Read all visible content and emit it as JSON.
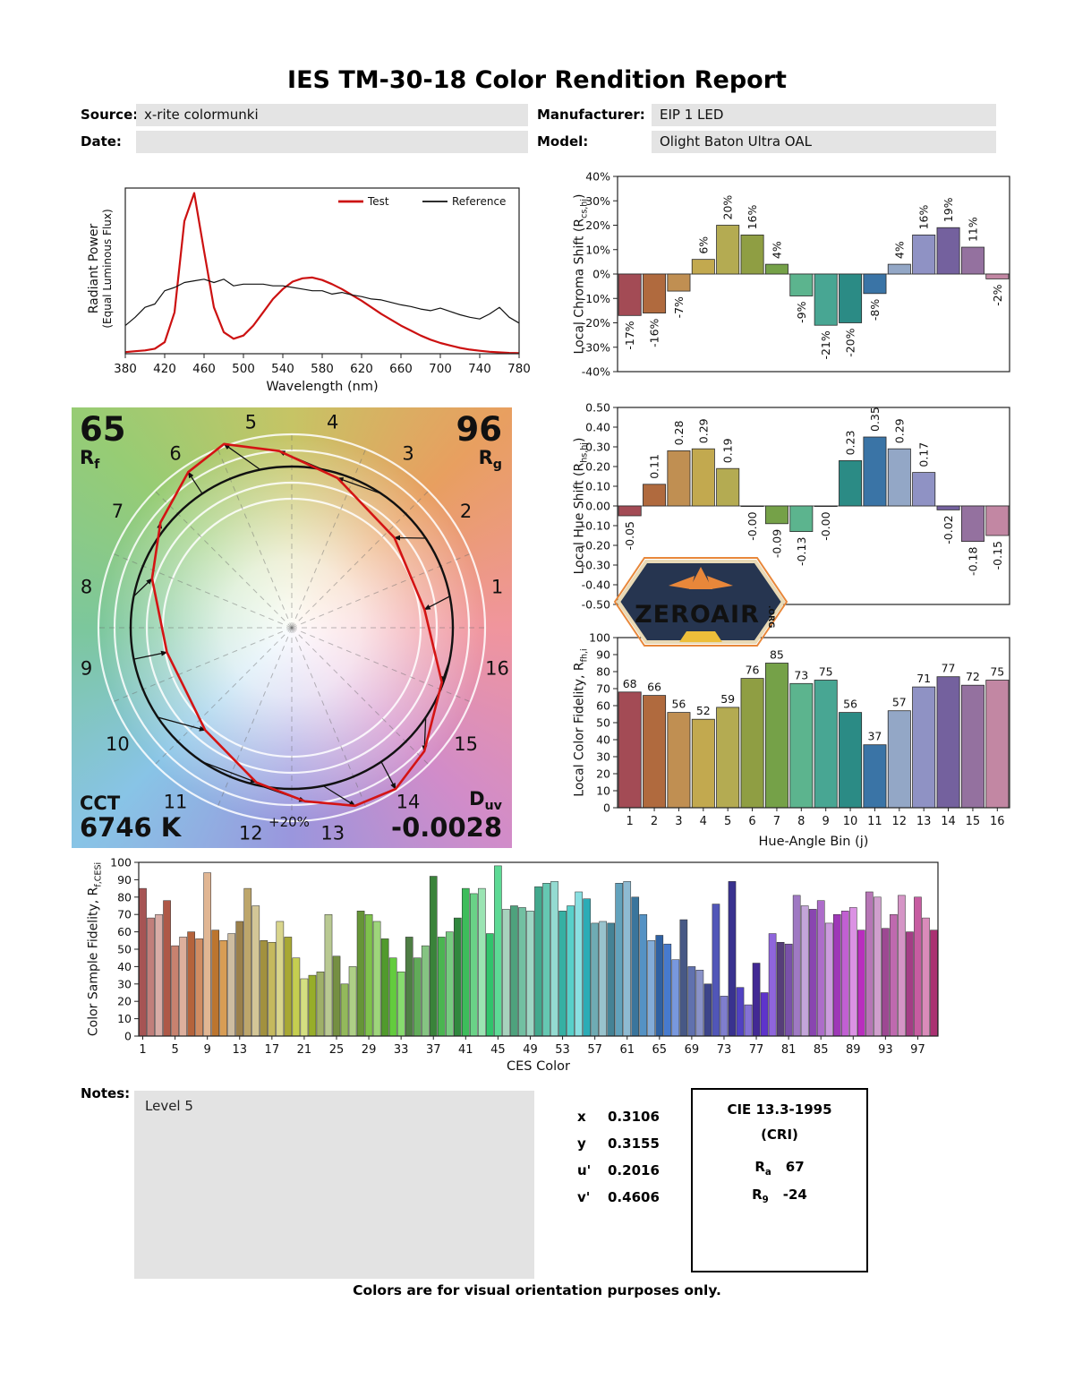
{
  "title": "IES TM-30-18 Color Rendition Report",
  "header": {
    "source_label": "Source:",
    "source_value": "x-rite colormunki",
    "date_label": "Date:",
    "date_value": "",
    "manufacturer_label": "Manufacturer:",
    "manufacturer_value": "EIP 1 LED",
    "model_label": "Model:",
    "model_value": "Olight Baton Ultra OAL"
  },
  "cvg": {
    "rf_value": "65",
    "rf_pre": "R",
    "rf_sub": "f",
    "rg_value": "96",
    "rg_pre": "R",
    "rg_sub": "g",
    "cct_label": "CCT",
    "cct_value": "6746 K",
    "duv_pre": "D",
    "duv_sub": "uv",
    "duv_value": "-0.0028",
    "ring_label": "+20%",
    "bin_numbers": [
      1,
      2,
      3,
      4,
      5,
      6,
      7,
      8,
      9,
      10,
      11,
      12,
      13,
      14,
      15,
      16
    ],
    "test_color": "#d41414",
    "reference_color": "#111111"
  },
  "logo": {
    "text": "ZEROAIR",
    "org": ".ORG"
  },
  "notes": {
    "label": "Notes:",
    "text": "Level 5"
  },
  "chromaticity": [
    {
      "label": "x",
      "value": "0.3106"
    },
    {
      "label": "y",
      "value": "0.3155"
    },
    {
      "label": "u'",
      "value": "0.2016"
    },
    {
      "label": "v'",
      "value": "0.4606"
    }
  ],
  "cri": {
    "title": "CIE 13.3-1995",
    "subtitle": "(CRI)",
    "ra_pre": "R",
    "ra_sub": "a",
    "ra_value": "67",
    "r9_pre": "R",
    "r9_sub": "9",
    "r9_value": "-24"
  },
  "footer": "Colors are for visual orientation purposes only.",
  "bin_colors": [
    "#a34b55",
    "#b06a3e",
    "#c08f52",
    "#c2a94f",
    "#b4ab52",
    "#8f9e43",
    "#75a148",
    "#5cb48e",
    "#48a693",
    "#2b8b85",
    "#3a74a6",
    "#93a7c6",
    "#8f92c4",
    "#74619e",
    "#94719f",
    "#c287a3"
  ],
  "chart_data": [
    {
      "id": "spd",
      "type": "line",
      "xlabel": "Wavelength (nm)",
      "ylabel": "Radiant Power",
      "ylabel2": "(Equal Luminous Flux)",
      "xlim": [
        380,
        780
      ],
      "ylim": [
        0,
        1
      ],
      "grid": false,
      "legend_position": "top-right",
      "xticks": [
        380,
        420,
        460,
        500,
        540,
        580,
        620,
        660,
        700,
        740,
        780
      ],
      "x": [
        380,
        390,
        400,
        410,
        420,
        430,
        440,
        450,
        460,
        470,
        480,
        490,
        500,
        510,
        520,
        530,
        540,
        550,
        560,
        570,
        580,
        590,
        600,
        610,
        620,
        630,
        640,
        650,
        660,
        670,
        680,
        690,
        700,
        710,
        720,
        730,
        740,
        750,
        760,
        770,
        780
      ],
      "series": [
        {
          "name": "Test",
          "color": "#cc1111",
          "width": 2.2,
          "values": [
            0.01,
            0.015,
            0.02,
            0.03,
            0.07,
            0.25,
            0.8,
            0.97,
            0.62,
            0.28,
            0.13,
            0.09,
            0.11,
            0.17,
            0.25,
            0.33,
            0.39,
            0.435,
            0.455,
            0.46,
            0.445,
            0.42,
            0.39,
            0.355,
            0.32,
            0.28,
            0.24,
            0.205,
            0.17,
            0.14,
            0.11,
            0.085,
            0.065,
            0.05,
            0.035,
            0.025,
            0.018,
            0.012,
            0.008,
            0.005,
            0.004
          ]
        },
        {
          "name": "Reference",
          "color": "#111111",
          "width": 1.2,
          "values": [
            0.17,
            0.22,
            0.28,
            0.3,
            0.38,
            0.4,
            0.43,
            0.44,
            0.45,
            0.43,
            0.45,
            0.41,
            0.42,
            0.42,
            0.42,
            0.41,
            0.41,
            0.4,
            0.39,
            0.38,
            0.38,
            0.36,
            0.37,
            0.355,
            0.345,
            0.33,
            0.325,
            0.31,
            0.295,
            0.285,
            0.27,
            0.26,
            0.275,
            0.255,
            0.235,
            0.22,
            0.21,
            0.24,
            0.28,
            0.22,
            0.185
          ]
        }
      ]
    },
    {
      "id": "chroma_shift",
      "type": "bar",
      "ylabel_pre": "Local Chroma Shift (R",
      "ylabel_sub": "cs,hj",
      "ylabel_post": ")",
      "ylim": [
        -40,
        40
      ],
      "ystep": 10,
      "ytick_suffix": "%",
      "categories": [
        1,
        2,
        3,
        4,
        5,
        6,
        7,
        8,
        9,
        10,
        11,
        12,
        13,
        14,
        15,
        16
      ],
      "values": [
        -17,
        -16,
        -7,
        6,
        20,
        16,
        4,
        -9,
        -21,
        -20,
        -8,
        4,
        16,
        19,
        11,
        -2
      ],
      "labels": [
        "-17%",
        "-16%",
        "-7%",
        "6%",
        "20%",
        "16%",
        "4%",
        "-9%",
        "-21%",
        "-20%",
        "-8%",
        "4%",
        "16%",
        "19%",
        "11%",
        "-2%"
      ]
    },
    {
      "id": "hue_shift",
      "type": "bar",
      "ylabel_pre": "Local Hue Shift (R",
      "ylabel_sub": "hs,hj",
      "ylabel_post": ")",
      "ylim": [
        -0.5,
        0.5
      ],
      "ystep": 0.1,
      "categories": [
        1,
        2,
        3,
        4,
        5,
        6,
        7,
        8,
        9,
        10,
        11,
        12,
        13,
        14,
        15,
        16
      ],
      "values": [
        -0.05,
        0.11,
        0.28,
        0.29,
        0.19,
        -0.002,
        -0.09,
        -0.13,
        -0.002,
        0.23,
        0.35,
        0.29,
        0.17,
        -0.02,
        -0.18,
        -0.15
      ],
      "labels": [
        "-0.05",
        "0.11",
        "0.28",
        "0.29",
        "0.19",
        "-0.00",
        "-0.09",
        "-0.13",
        "-0.00",
        "0.23",
        "0.35",
        "0.29",
        "0.17",
        "-0.02",
        "-0.18",
        "-0.15"
      ]
    },
    {
      "id": "local_fidelity",
      "type": "bar",
      "ylabel_pre": "Local Color Fidelity, R",
      "ylabel_sub": "fh,i",
      "ylabel_post": "",
      "xlabel": "Hue-Angle Bin (j)",
      "ylim": [
        0,
        100
      ],
      "ystep": 10,
      "categories": [
        1,
        2,
        3,
        4,
        5,
        6,
        7,
        8,
        9,
        10,
        11,
        12,
        13,
        14,
        15,
        16
      ],
      "values": [
        68,
        66,
        56,
        52,
        59,
        76,
        85,
        73,
        75,
        56,
        37,
        57,
        71,
        77,
        72,
        75
      ],
      "labels": [
        "68",
        "66",
        "56",
        "52",
        "59",
        "76",
        "85",
        "73",
        "75",
        "56",
        "37",
        "57",
        "71",
        "77",
        "72",
        "75"
      ]
    },
    {
      "id": "ces_fidelity",
      "type": "bar",
      "ylabel_pre": "Color Sample Fidelity, R",
      "ylabel_sub": "f,CESi",
      "ylabel_post": "",
      "xlabel": "CES Color",
      "ylim": [
        0,
        100
      ],
      "ystep": 10,
      "xticks": [
        1,
        5,
        9,
        13,
        17,
        21,
        25,
        29,
        33,
        37,
        41,
        45,
        49,
        53,
        57,
        61,
        65,
        69,
        73,
        77,
        81,
        85,
        89,
        93,
        97
      ],
      "values": [
        85,
        68,
        70,
        78,
        52,
        57,
        60,
        56,
        94,
        61,
        55,
        59,
        66,
        85,
        75,
        55,
        54,
        66,
        57,
        45,
        33,
        35,
        37,
        70,
        46,
        30,
        40,
        72,
        70,
        66,
        56,
        45,
        37,
        57,
        45,
        52,
        92,
        57,
        60,
        68,
        85,
        82,
        85,
        59,
        98,
        73,
        75,
        74,
        72,
        86,
        88,
        89,
        72,
        75,
        83,
        79,
        65,
        66,
        65,
        88,
        89,
        80,
        70,
        55,
        58,
        53,
        44,
        67,
        40,
        38,
        30,
        76,
        23,
        89,
        28,
        18,
        42,
        25,
        59,
        54,
        53,
        81,
        75,
        73,
        78,
        65,
        70,
        72,
        74,
        61,
        83,
        80,
        62,
        70,
        81,
        60,
        80,
        68,
        61
      ]
    }
  ]
}
